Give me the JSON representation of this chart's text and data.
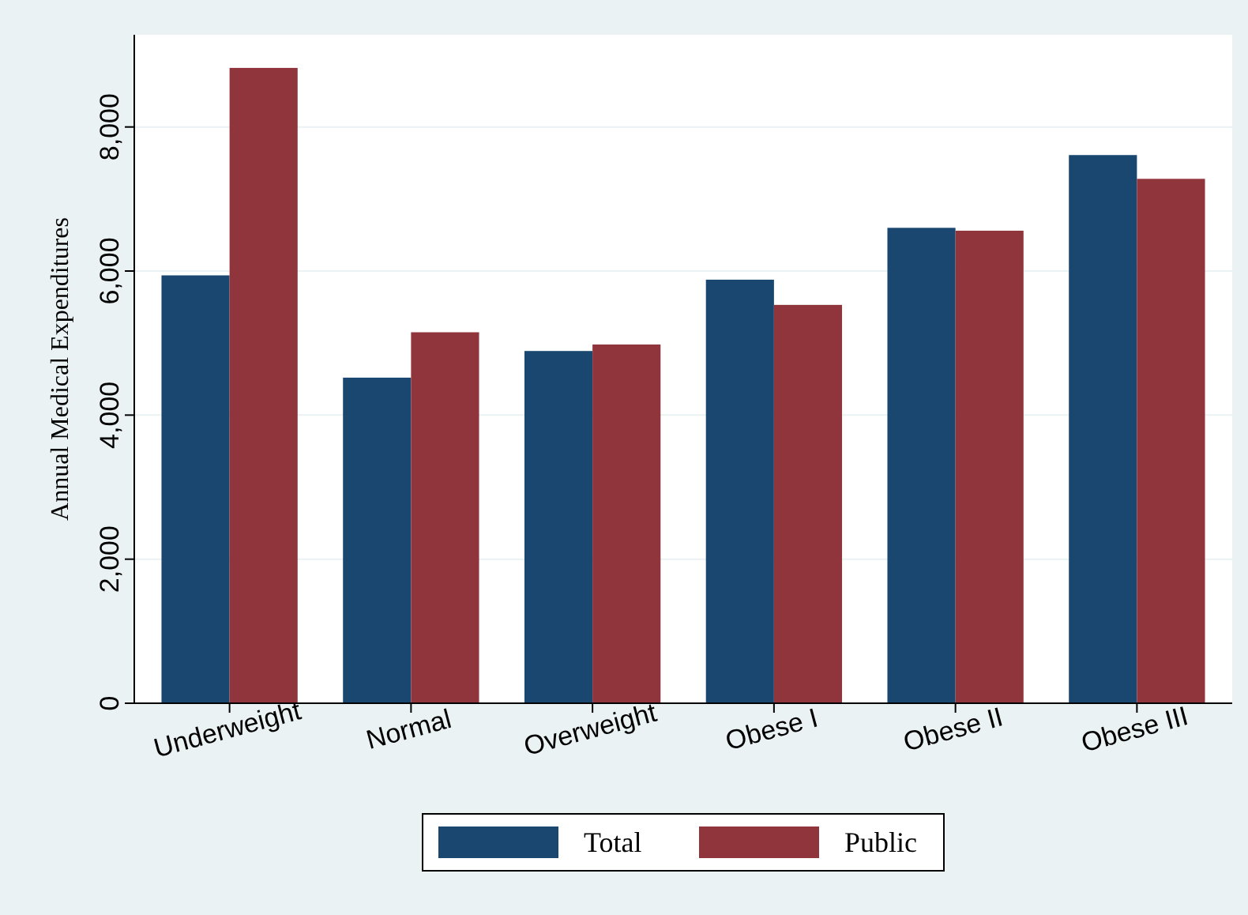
{
  "chart_data": {
    "type": "bar",
    "ylabel": "Annual Medical Expenditures",
    "categories": [
      "Underweight",
      "Normal",
      "Overweight",
      "Obese I",
      "Obese II",
      "Obese III"
    ],
    "series": [
      {
        "name": "Total",
        "color": "#1a476f",
        "values": [
          5940,
          4520,
          4890,
          5880,
          6600,
          7610
        ]
      },
      {
        "name": "Public",
        "color": "#90353b",
        "values": [
          8820,
          5150,
          4980,
          5530,
          6560,
          7280
        ]
      }
    ],
    "ylim": [
      0,
      9280
    ],
    "yticks": [
      {
        "value": 0,
        "label": "0"
      },
      {
        "value": 2000,
        "label": "2,000"
      },
      {
        "value": 4000,
        "label": "4,000"
      },
      {
        "value": 6000,
        "label": "6,000"
      },
      {
        "value": 8000,
        "label": "8,000"
      }
    ],
    "grid": "y",
    "legend": "bottom"
  }
}
